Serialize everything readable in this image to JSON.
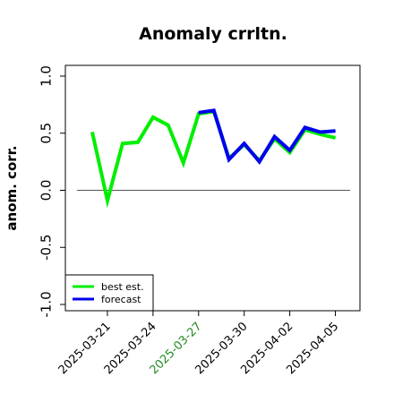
{
  "chart_data": {
    "type": "line",
    "title": "Anomaly crrltn.",
    "xlabel": "",
    "ylabel": "anom. corr.",
    "ylim": [
      -1.0,
      1.0
    ],
    "yticks": [
      "-1.0",
      "-0.5",
      "0.0",
      "0.5",
      "1.0"
    ],
    "xlim": [
      "2025-03-20",
      "2025-04-06"
    ],
    "xticks": [
      {
        "label": "2025-03-21",
        "date": "2025-03-21",
        "color": "#000000"
      },
      {
        "label": "2025-03-24",
        "date": "2025-03-24",
        "color": "#000000"
      },
      {
        "label": "2025-03-27",
        "date": "2025-03-27",
        "color": "#228B22"
      },
      {
        "label": "2025-03-30",
        "date": "2025-03-30",
        "color": "#000000"
      },
      {
        "label": "2025-04-02",
        "date": "2025-04-02",
        "color": "#000000"
      },
      {
        "label": "2025-04-05",
        "date": "2025-04-05",
        "color": "#000000"
      }
    ],
    "reference_line": 0.0,
    "grid": false,
    "legend_position": "bottom-left",
    "series": [
      {
        "name": "best est.",
        "color": "#00ee00",
        "x": [
          "2025-03-20",
          "2025-03-21",
          "2025-03-22",
          "2025-03-23",
          "2025-03-24",
          "2025-03-25",
          "2025-03-26",
          "2025-03-27",
          "2025-03-28",
          "2025-03-29",
          "2025-03-30",
          "2025-03-31",
          "2025-04-01",
          "2025-04-02",
          "2025-04-03",
          "2025-04-04",
          "2025-04-05"
        ],
        "values": [
          0.51,
          -0.09,
          0.41,
          0.42,
          0.64,
          0.57,
          0.24,
          0.67,
          0.69,
          0.28,
          0.4,
          0.26,
          0.45,
          0.33,
          0.53,
          0.49,
          0.46
        ]
      },
      {
        "name": "forecast",
        "color": "#0000ee",
        "x": [
          "2025-03-27",
          "2025-03-28",
          "2025-03-29",
          "2025-03-30",
          "2025-03-31",
          "2025-04-01",
          "2025-04-02",
          "2025-04-03",
          "2025-04-04",
          "2025-04-05"
        ],
        "values": [
          0.68,
          0.7,
          0.27,
          0.41,
          0.25,
          0.47,
          0.35,
          0.55,
          0.51,
          0.52
        ]
      }
    ]
  }
}
